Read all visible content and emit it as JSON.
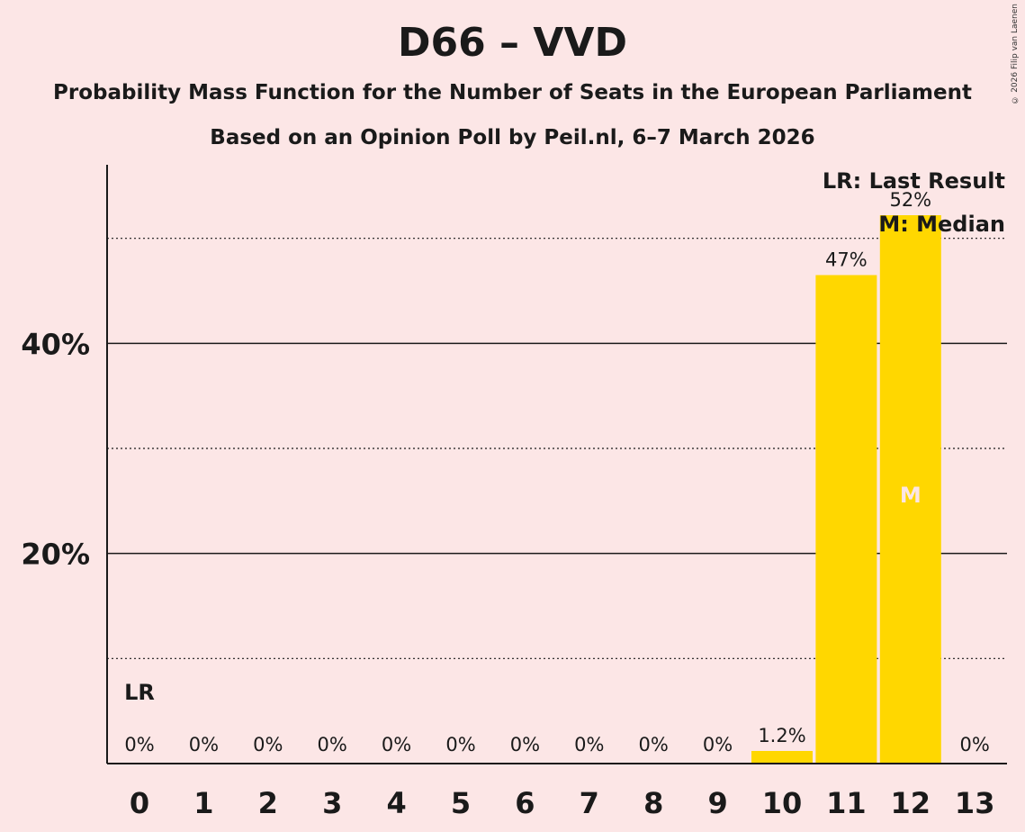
{
  "chart_data": {
    "type": "bar",
    "title": "D66 – VVD",
    "subtitle": "Probability Mass Function for the Number of Seats in the European Parliament",
    "subtitle2": "Based on an Opinion Poll by Peil.nl, 6–7 March 2026",
    "copyright": "© 2026 Filip van Laenen",
    "categories": [
      "0",
      "1",
      "2",
      "3",
      "4",
      "5",
      "6",
      "7",
      "8",
      "9",
      "10",
      "11",
      "12",
      "13"
    ],
    "values": [
      0,
      0,
      0,
      0,
      0,
      0,
      0,
      0,
      0,
      0,
      1.2,
      46.5,
      52.2,
      0
    ],
    "value_labels": [
      "0%",
      "0%",
      "0%",
      "0%",
      "0%",
      "0%",
      "0%",
      "0%",
      "0%",
      "0%",
      "1.2%",
      "47%",
      "52%",
      "0%"
    ],
    "ylim": [
      0,
      57
    ],
    "yticks": [
      20,
      40
    ],
    "ytick_labels": [
      "20%",
      "40%"
    ],
    "minor_gridlines": [
      10,
      30,
      50
    ],
    "bar_color": "#ffd700",
    "last_result_index": 0,
    "last_result_label": "LR",
    "median_index": 12,
    "median_label": "M",
    "legend": [
      "LR: Last Result",
      "M: Median"
    ]
  }
}
